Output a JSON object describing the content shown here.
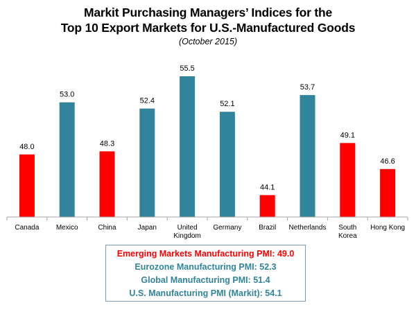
{
  "chart_data": {
    "type": "bar",
    "title_line1": "Markit Purchasing Managers’ Indices for the",
    "title_line2": "Top 10 Export Markets for U.S.-Manufactured Goods",
    "subtitle": "(October 2015)",
    "categories": [
      "Canada",
      "Mexico",
      "China",
      "Japan",
      "United Kingdom",
      "Germany",
      "Brazil",
      "Netherlands",
      "South Korea",
      "Hong Kong"
    ],
    "category_label_lines": [
      [
        "Canada"
      ],
      [
        "Mexico"
      ],
      [
        "China"
      ],
      [
        "Japan"
      ],
      [
        "United",
        "Kingdom"
      ],
      [
        "Germany"
      ],
      [
        "Brazil"
      ],
      [
        "Netherlands"
      ],
      [
        "South",
        "Korea"
      ],
      [
        "Hong Kong"
      ]
    ],
    "values": [
      48.0,
      53.0,
      48.3,
      52.4,
      55.5,
      52.1,
      44.1,
      53.7,
      49.1,
      46.6
    ],
    "value_labels": [
      "48.0",
      "53.0",
      "48.3",
      "52.4",
      "55.5",
      "52.1",
      "44.1",
      "53.7",
      "49.1",
      "46.6"
    ],
    "bar_groups": [
      "emerging",
      "other",
      "emerging",
      "other",
      "other",
      "other",
      "emerging",
      "other",
      "emerging",
      "emerging"
    ],
    "ylim": [
      42,
      56.5
    ],
    "grid": false,
    "xlabel": "",
    "ylabel": ""
  },
  "colors": {
    "emerging": "#ff0000",
    "other": "#31849b",
    "axis": "#a6a6a6",
    "text": "#000000",
    "box_border": "#7a9ab5"
  },
  "summary": [
    {
      "text": "Emerging Markets Manufacturing PMI: 49.0",
      "color": "#ff0000"
    },
    {
      "text": "Eurozone Manufacturing PMI: 52.3",
      "color": "#31849b"
    },
    {
      "text": "Global Manufacturing PMI: 51.4",
      "color": "#31849b"
    },
    {
      "text": "U.S. Manufacturing PMI (Markit): 54.1",
      "color": "#31849b"
    }
  ]
}
